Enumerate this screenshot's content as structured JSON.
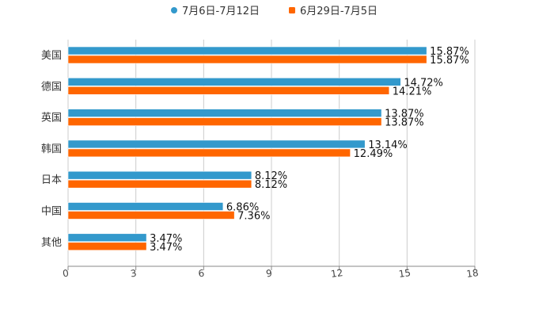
{
  "chart_data": {
    "type": "bar",
    "orientation": "horizontal",
    "title": "",
    "categories": [
      "美国",
      "德国",
      "英国",
      "韩国",
      "日本",
      "中国",
      "其他"
    ],
    "series": [
      {
        "name": "7月6日-7月12日",
        "color": "#3399cc",
        "marker": "circle",
        "values": [
          15.87,
          14.72,
          13.87,
          13.14,
          8.12,
          6.86,
          3.47
        ],
        "labels": [
          "15.87%",
          "14.72%",
          "13.87%",
          "13.14%",
          "8.12%",
          "6.86%",
          "3.47%"
        ]
      },
      {
        "name": "6月29日-7月5日",
        "color": "#ff6600",
        "marker": "square",
        "values": [
          15.87,
          14.21,
          13.87,
          12.49,
          8.12,
          7.36,
          3.47
        ],
        "labels": [
          "15.87%",
          "14.21%",
          "13.87%",
          "12.49%",
          "8.12%",
          "7.36%",
          "3.47%"
        ]
      }
    ],
    "xlim": [
      0,
      18
    ],
    "xticks": [
      "0",
      "3",
      "6",
      "9",
      "12",
      "15",
      "18"
    ],
    "xlabel": "",
    "ylabel": "",
    "grid": true,
    "legend": "top-center"
  }
}
